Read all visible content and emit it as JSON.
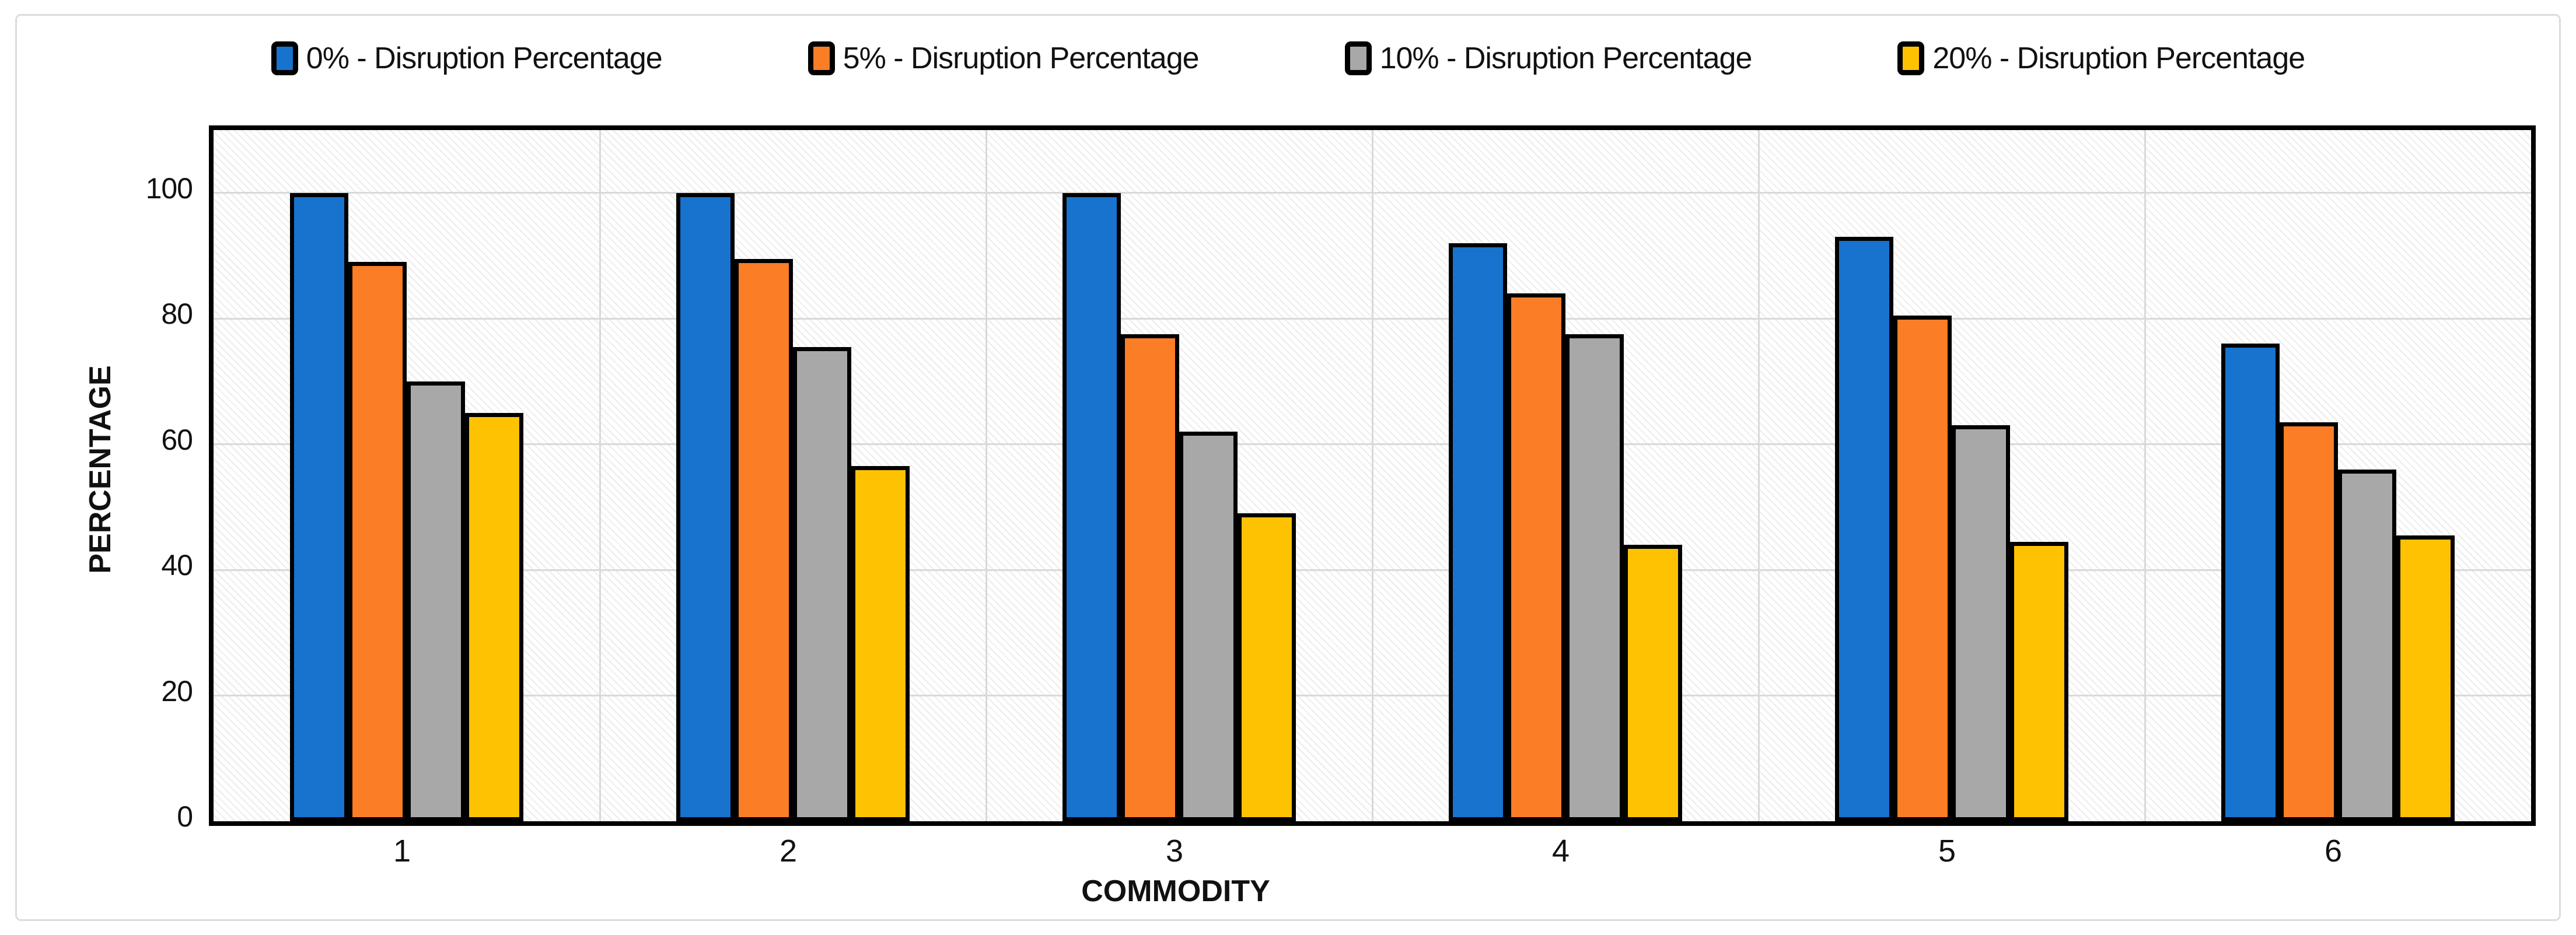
{
  "chart_data": {
    "type": "bar",
    "categories": [
      "1",
      "2",
      "3",
      "4",
      "5",
      "6"
    ],
    "series": [
      {
        "name": "0% - Disruption Percentage",
        "color": "#1773CE",
        "values": [
          100,
          100,
          100,
          92,
          93,
          76
        ]
      },
      {
        "name": "5% - Disruption Percentage",
        "color": "#FB7D25",
        "values": [
          89,
          89.5,
          77.5,
          84,
          80.5,
          63.5
        ]
      },
      {
        "name": "10% - Disruption Percentage",
        "color": "#A8A8A8",
        "values": [
          70,
          75.5,
          62,
          77.5,
          63,
          56
        ]
      },
      {
        "name": "20% - Disruption Percentage",
        "color": "#FFC203",
        "values": [
          65,
          56.5,
          49,
          44,
          44.5,
          45.5
        ]
      }
    ],
    "title": "",
    "xlabel": "COMMODITY",
    "ylabel": "PERCENTAGE",
    "ylim": [
      0,
      110
    ],
    "yticks": [
      0,
      20,
      40,
      60,
      80,
      100
    ],
    "grid": true,
    "legend_position": "top",
    "bar_border_color": "#000000",
    "plot_hatch": "diagonal",
    "gridline_color": "#d9d9d9"
  }
}
